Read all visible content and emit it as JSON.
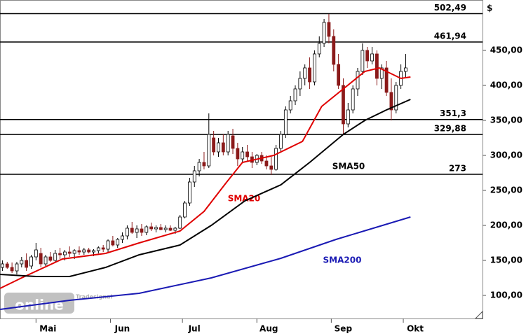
{
  "chart_data": {
    "type": "candlestick",
    "y_label": "$",
    "watermark": [
      "Tradesignal",
      "online"
    ],
    "xlim": [
      0,
      201
    ],
    "xticks": [
      {
        "value": 15,
        "label": "Mai"
      },
      {
        "value": 46,
        "label": "Jun"
      },
      {
        "value": 76,
        "label": "Jul"
      },
      {
        "value": 107,
        "label": "Aug"
      },
      {
        "value": 138,
        "label": "Sep"
      },
      {
        "value": 168,
        "label": "Okt"
      }
    ],
    "ylim": [
      67,
      522
    ],
    "yticks": [
      {
        "value": 100,
        "label": "100,00"
      },
      {
        "value": 150,
        "label": "150,00"
      },
      {
        "value": 200,
        "label": "200,00"
      },
      {
        "value": 250,
        "label": "250,00"
      },
      {
        "value": 300,
        "label": "300,00"
      },
      {
        "value": 350,
        "label": "350,00"
      },
      {
        "value": 400,
        "label": "400,00"
      },
      {
        "value": 450,
        "label": "450,00"
      }
    ],
    "up_color": "#ffffff",
    "down_color": "#8b1a1a",
    "candles": {
      "x": [
        1,
        3,
        5,
        7,
        9,
        11,
        13,
        15,
        17,
        19,
        21,
        23,
        25,
        27,
        29,
        31,
        33,
        35,
        37,
        39,
        41,
        43,
        45,
        47,
        49,
        51,
        53,
        55,
        57,
        59,
        61,
        63,
        65,
        67,
        69,
        71,
        73,
        75,
        77,
        79,
        81,
        83,
        85,
        87,
        89,
        91,
        93,
        95,
        97,
        99,
        101,
        103,
        105,
        107,
        109,
        111,
        113,
        115,
        117,
        119,
        121,
        123,
        125,
        127,
        129,
        131,
        133,
        135,
        137,
        139,
        141,
        143,
        145,
        147,
        149,
        151,
        153,
        155,
        157,
        159,
        161,
        163,
        165,
        167,
        169
      ],
      "open": [
        140,
        145,
        140,
        135,
        145,
        150,
        142,
        155,
        160,
        145,
        155,
        150,
        160,
        158,
        162,
        160,
        164,
        162,
        165,
        162,
        164,
        168,
        166,
        178,
        172,
        180,
        185,
        196,
        190,
        195,
        190,
        198,
        195,
        197,
        194,
        196,
        193,
        196,
        212,
        232,
        262,
        278,
        290,
        285,
        325,
        305,
        318,
        305,
        328,
        310,
        295,
        305,
        298,
        290,
        300,
        292,
        285,
        280,
        310,
        330,
        365,
        378,
        395,
        410,
        425,
        405,
        445,
        460,
        490,
        470,
        430,
        400,
        345,
        365,
        395,
        420,
        450,
        435,
        445,
        410,
        425,
        390,
        365,
        400,
        420
      ],
      "high": [
        150,
        148,
        147,
        148,
        155,
        160,
        158,
        175,
        168,
        158,
        162,
        165,
        168,
        165,
        170,
        166,
        170,
        168,
        168,
        166,
        170,
        172,
        180,
        185,
        182,
        190,
        200,
        205,
        200,
        202,
        200,
        204,
        200,
        202,
        200,
        200,
        198,
        215,
        235,
        268,
        285,
        295,
        305,
        360,
        335,
        325,
        330,
        335,
        338,
        318,
        312,
        315,
        305,
        302,
        305,
        300,
        298,
        315,
        335,
        370,
        385,
        400,
        420,
        430,
        440,
        450,
        470,
        495,
        502,
        480,
        445,
        410,
        375,
        400,
        425,
        460,
        455,
        455,
        450,
        430,
        435,
        410,
        405,
        430,
        445
      ],
      "low": [
        135,
        138,
        132,
        130,
        140,
        135,
        138,
        150,
        140,
        142,
        148,
        148,
        152,
        150,
        155,
        152,
        158,
        158,
        160,
        156,
        160,
        162,
        162,
        170,
        168,
        175,
        180,
        188,
        182,
        185,
        186,
        192,
        190,
        193,
        190,
        192,
        188,
        195,
        210,
        228,
        255,
        270,
        280,
        282,
        300,
        298,
        300,
        300,
        302,
        285,
        290,
        292,
        282,
        286,
        288,
        280,
        272,
        278,
        305,
        325,
        360,
        372,
        385,
        400,
        395,
        400,
        440,
        455,
        460,
        420,
        395,
        330,
        340,
        360,
        385,
        415,
        425,
        430,
        400,
        395,
        385,
        350,
        360,
        395,
        412
      ],
      "close": [
        145,
        140,
        135,
        145,
        150,
        140,
        155,
        165,
        145,
        155,
        150,
        160,
        158,
        162,
        160,
        164,
        162,
        165,
        162,
        164,
        168,
        166,
        178,
        172,
        180,
        185,
        196,
        190,
        195,
        190,
        198,
        195,
        197,
        194,
        196,
        193,
        196,
        212,
        232,
        262,
        278,
        290,
        285,
        330,
        305,
        318,
        305,
        330,
        310,
        295,
        305,
        298,
        290,
        300,
        292,
        285,
        280,
        310,
        330,
        365,
        378,
        395,
        410,
        425,
        405,
        445,
        460,
        490,
        470,
        430,
        400,
        345,
        365,
        395,
        420,
        450,
        435,
        445,
        410,
        425,
        390,
        365,
        400,
        420,
        425
      ]
    },
    "series": [
      {
        "name": "SMA20",
        "color": "#e00000",
        "x": [
          0,
          9,
          26,
          44,
          58,
          75,
          85,
          94,
          101,
          114,
          126,
          134,
          143,
          152,
          158,
          167,
          171
        ],
        "values": [
          110,
          125,
          152,
          160,
          175,
          192,
          220,
          260,
          290,
          300,
          320,
          370,
          395,
          420,
          425,
          410,
          412
        ]
      },
      {
        "name": "SMA50",
        "color": "#000000",
        "x": [
          0,
          15,
          29,
          44,
          58,
          75,
          88,
          102,
          117,
          129,
          143,
          152,
          161,
          171
        ],
        "values": [
          130,
          127,
          127,
          140,
          158,
          172,
          200,
          235,
          258,
          290,
          330,
          350,
          365,
          380
        ]
      },
      {
        "name": "SMA200",
        "color": "#1a1ab4",
        "x": [
          0,
          29,
          58,
          88,
          117,
          140,
          171
        ],
        "values": [
          80,
          93,
          103,
          125,
          153,
          180,
          212
        ]
      }
    ],
    "levels": {
      "values": [
        502.49,
        461.94,
        351.3,
        329.88,
        273
      ],
      "value_labels": [
        "502,49",
        "461,94",
        "351,3",
        "329,88",
        "273"
      ]
    }
  }
}
